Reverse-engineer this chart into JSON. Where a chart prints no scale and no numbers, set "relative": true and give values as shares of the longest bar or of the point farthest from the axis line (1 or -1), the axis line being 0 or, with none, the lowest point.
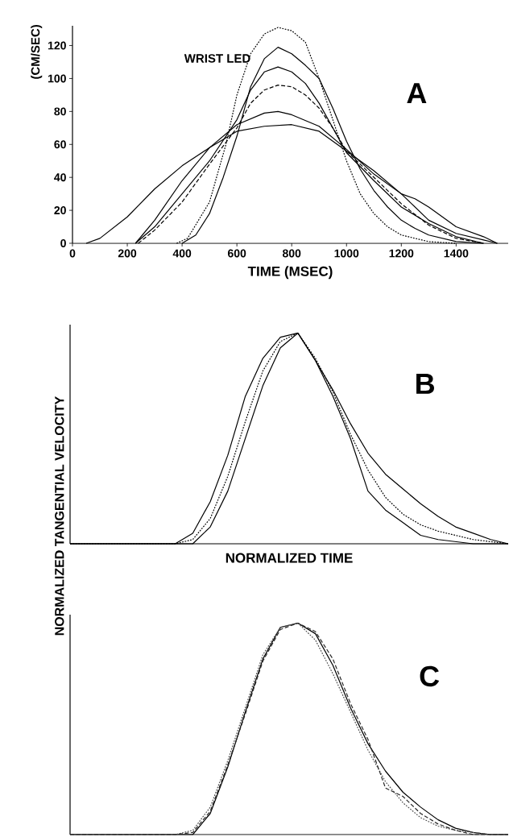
{
  "chart_data": [
    {
      "type": "line",
      "ylabel": "(CM/SEC)",
      "xlabel": "TIME (MSEC)",
      "annotations": [
        "WRIST LED",
        "A"
      ],
      "xlim": [
        0,
        1590
      ],
      "ylim": [
        0,
        132
      ],
      "xticks": [
        0,
        200,
        400,
        600,
        800,
        1000,
        1200,
        1400
      ],
      "yticks": [
        0,
        20,
        40,
        60,
        80,
        100,
        120
      ],
      "series": [
        {
          "color": "#000000",
          "line_style": "dotted",
          "x": [
            380,
            420,
            500,
            560,
            600,
            650,
            700,
            750,
            800,
            850,
            900,
            950,
            1000,
            1050,
            1100,
            1150,
            1200,
            1300,
            1400
          ],
          "values": [
            0,
            3,
            25,
            60,
            90,
            115,
            127,
            131,
            129,
            122,
            100,
            75,
            50,
            30,
            18,
            10,
            5,
            1,
            0
          ]
        },
        {
          "color": "#000000",
          "line_style": "solid",
          "x": [
            400,
            450,
            500,
            550,
            600,
            650,
            700,
            750,
            800,
            850,
            900,
            950,
            1000,
            1050,
            1100,
            1150,
            1200,
            1250,
            1300,
            1400,
            1500
          ],
          "values": [
            0,
            5,
            18,
            40,
            65,
            95,
            112,
            119,
            115,
            108,
            100,
            82,
            62,
            45,
            32,
            22,
            14,
            9,
            5,
            1,
            0
          ]
        },
        {
          "color": "#000000",
          "line_style": "solid",
          "x": [
            230,
            300,
            400,
            500,
            600,
            650,
            700,
            750,
            800,
            850,
            900,
            950,
            1000,
            1100,
            1200,
            1300,
            1400,
            1500
          ],
          "values": [
            0,
            10,
            30,
            50,
            75,
            93,
            104,
            107,
            104,
            97,
            85,
            70,
            55,
            38,
            22,
            12,
            4,
            0
          ]
        },
        {
          "color": "#000000",
          "line_style": "dashed",
          "x": [
            240,
            300,
            400,
            500,
            600,
            650,
            700,
            750,
            800,
            850,
            900,
            950,
            1000,
            1100,
            1200,
            1300,
            1400,
            1500
          ],
          "values": [
            0,
            8,
            25,
            48,
            70,
            85,
            93,
            96,
            95,
            90,
            82,
            70,
            56,
            40,
            24,
            11,
            3,
            0
          ]
        },
        {
          "color": "#000000",
          "line_style": "solid",
          "x": [
            230,
            300,
            400,
            500,
            600,
            700,
            750,
            800,
            900,
            1000,
            1100,
            1200,
            1300,
            1400,
            1500,
            1550
          ],
          "values": [
            0,
            14,
            38,
            58,
            72,
            79,
            80,
            78,
            71,
            57,
            42,
            30,
            14,
            6,
            2,
            0
          ]
        },
        {
          "color": "#000000",
          "line_style": "solid",
          "x": [
            50,
            100,
            200,
            300,
            400,
            500,
            600,
            700,
            800,
            900,
            1000,
            1100,
            1200,
            1250,
            1300,
            1400,
            1500,
            1550
          ],
          "values": [
            0,
            3,
            16,
            33,
            47,
            58,
            68,
            71,
            72,
            68,
            56,
            44,
            30,
            27,
            22,
            10,
            4,
            0
          ]
        }
      ]
    },
    {
      "type": "line",
      "relative": true,
      "xlabel": "NORMALIZED TIME",
      "ylabel": "NORMALIZED TANGENTIAL VELOCITY",
      "annotations": [
        "B"
      ],
      "categories": [
        null,
        null,
        null,
        null,
        null,
        null,
        null,
        null,
        null,
        null,
        null,
        null,
        null,
        null,
        null,
        null,
        null,
        null,
        null,
        null,
        null,
        null,
        null,
        null,
        null,
        null
      ],
      "series": [
        {
          "color": "#000000",
          "line_style": "solid",
          "values": [
            0,
            0,
            0,
            0,
            0,
            0,
            0,
            0.05,
            0.2,
            0.42,
            0.7,
            0.88,
            0.98,
            1,
            0.87,
            0.73,
            0.57,
            0.43,
            0.33,
            0.26,
            0.19,
            0.13,
            0.08,
            0.05,
            0.02,
            0
          ]
        },
        {
          "color": "#000000",
          "line_style": "dotted",
          "values": [
            0,
            0,
            0,
            0,
            0,
            0,
            0,
            0.02,
            0.12,
            0.32,
            0.58,
            0.82,
            0.96,
            1,
            0.88,
            0.72,
            0.52,
            0.35,
            0.22,
            0.14,
            0.09,
            0.06,
            0.04,
            0.02,
            0.01,
            0
          ]
        },
        {
          "color": "#000000",
          "line_style": "solid",
          "values": [
            0,
            0,
            0,
            0,
            0,
            0,
            0,
            0,
            0.08,
            0.25,
            0.5,
            0.75,
            0.93,
            1,
            0.87,
            0.7,
            0.5,
            0.25,
            0.16,
            0.1,
            0.04,
            0.02,
            0.01,
            0,
            0,
            0
          ]
        }
      ]
    },
    {
      "type": "line",
      "relative": true,
      "annotations": [
        "C"
      ],
      "categories": [
        null,
        null,
        null,
        null,
        null,
        null,
        null,
        null,
        null,
        null,
        null,
        null,
        null,
        null,
        null,
        null,
        null,
        null,
        null,
        null,
        null,
        null,
        null,
        null,
        null,
        null
      ],
      "series": [
        {
          "color": "#000000",
          "line_style": "solid",
          "values": [
            0,
            0,
            0,
            0,
            0,
            0,
            0,
            0,
            0.1,
            0.32,
            0.58,
            0.83,
            0.98,
            1,
            0.95,
            0.8,
            0.6,
            0.43,
            0.3,
            0.2,
            0.13,
            0.07,
            0.03,
            0.01,
            0,
            0
          ]
        },
        {
          "color": "#505050",
          "line_style": "dotted",
          "values": [
            0,
            0,
            0,
            0,
            0,
            0,
            0,
            0.02,
            0.13,
            0.35,
            0.6,
            0.85,
            0.98,
            1,
            0.92,
            0.76,
            0.58,
            0.4,
            0.25,
            0.15,
            0.08,
            0.04,
            0.02,
            0.01,
            0,
            0
          ]
        },
        {
          "color": "#282828",
          "line_style": "dashed",
          "values": [
            0,
            0,
            0,
            0,
            0,
            0,
            0,
            0.01,
            0.11,
            0.33,
            0.57,
            0.82,
            0.97,
            1,
            0.96,
            0.83,
            0.62,
            0.45,
            0.22,
            0.18,
            0.1,
            0.05,
            0.02,
            0,
            0,
            0
          ]
        }
      ]
    }
  ]
}
